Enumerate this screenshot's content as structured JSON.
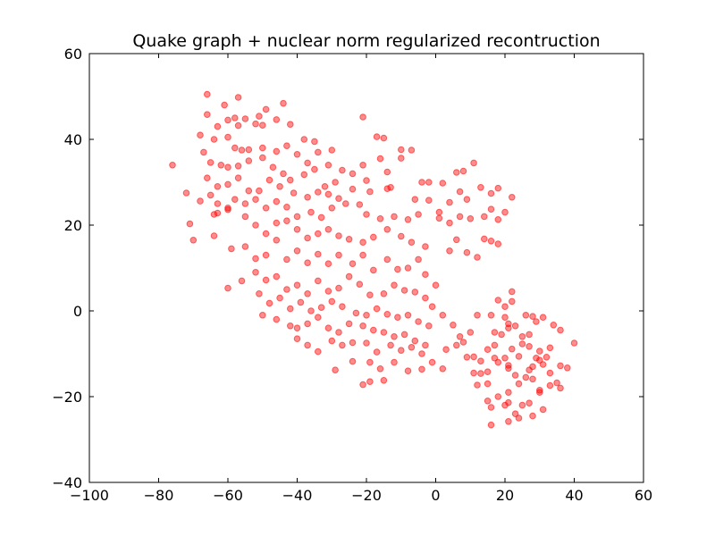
{
  "chart_data": {
    "type": "scatter",
    "title": "Quake graph + nuclear norm regularized recontruction",
    "xlabel": "",
    "ylabel": "",
    "xlim": [
      -100,
      60
    ],
    "ylim": [
      -40,
      60
    ],
    "xticks": [
      -100,
      -80,
      -60,
      -40,
      -20,
      0,
      20,
      40,
      60
    ],
    "yticks": [
      -40,
      -20,
      0,
      20,
      40,
      60
    ],
    "xtick_labels": [
      "−100",
      "−80",
      "−60",
      "−40",
      "−20",
      "0",
      "20",
      "40",
      "60"
    ],
    "ytick_labels": [
      "−40",
      "−20",
      "0",
      "20",
      "40",
      "60"
    ],
    "grid": false,
    "legend": "none",
    "marker_color": "#ff0000",
    "points": [
      [
        -66,
        50.5
      ],
      [
        -61,
        48
      ],
      [
        -57,
        49.8
      ],
      [
        -49,
        47
      ],
      [
        -44,
        48.4
      ],
      [
        -46,
        44.6
      ],
      [
        -51,
        45.4
      ],
      [
        -55,
        44.8
      ],
      [
        -58,
        45
      ],
      [
        -60,
        44.5
      ],
      [
        -66,
        45.8
      ],
      [
        -63,
        43
      ],
      [
        -57,
        43.2
      ],
      [
        -52,
        43.6
      ],
      [
        -50,
        43.3
      ],
      [
        -42,
        43.5
      ],
      [
        -38,
        40
      ],
      [
        -35,
        39.5
      ],
      [
        -30,
        37.5
      ],
      [
        -21,
        45.2
      ],
      [
        -17,
        40.6
      ],
      [
        -15,
        40.3
      ],
      [
        -10,
        37.6
      ],
      [
        -7,
        37.5
      ],
      [
        -16,
        35.5
      ],
      [
        -68,
        41
      ],
      [
        -64,
        40
      ],
      [
        -60,
        40.5
      ],
      [
        -58,
        38
      ],
      [
        -56,
        37.5
      ],
      [
        -54,
        37.6
      ],
      [
        -50,
        38
      ],
      [
        -46,
        37.2
      ],
      [
        -43,
        38.5
      ],
      [
        -40,
        36.5
      ],
      [
        -37,
        34.5
      ],
      [
        -34,
        37
      ],
      [
        -31,
        34
      ],
      [
        -27,
        32.8
      ],
      [
        -21,
        34
      ],
      [
        -14,
        32.4
      ],
      [
        -10,
        35.6
      ],
      [
        -67,
        37
      ],
      [
        -65,
        34.6
      ],
      [
        -62,
        34
      ],
      [
        -60,
        33.5
      ],
      [
        -57,
        33.8
      ],
      [
        -54,
        35
      ],
      [
        -50,
        35.7
      ],
      [
        -47,
        33.5
      ],
      [
        -44,
        32
      ],
      [
        -42,
        30.5
      ],
      [
        -38,
        31.8
      ],
      [
        -35,
        33
      ],
      [
        -32,
        29
      ],
      [
        -29,
        30
      ],
      [
        -24,
        32
      ],
      [
        -20,
        30.4
      ],
      [
        -76,
        34
      ],
      [
        -66,
        31
      ],
      [
        -63,
        29
      ],
      [
        -60,
        29.5
      ],
      [
        -57,
        31
      ],
      [
        -54,
        28
      ],
      [
        -51,
        28
      ],
      [
        -48,
        30.5
      ],
      [
        -45,
        29
      ],
      [
        -41,
        27.5
      ],
      [
        -37,
        26.5
      ],
      [
        -34,
        27.7
      ],
      [
        -31,
        27.2
      ],
      [
        -28,
        26.2
      ],
      [
        -24,
        28.4
      ],
      [
        -19,
        27.8
      ],
      [
        -14,
        28.5
      ],
      [
        -13,
        28.8
      ],
      [
        -6,
        26
      ],
      [
        -4,
        30
      ],
      [
        -2,
        30
      ],
      [
        2,
        29.8
      ],
      [
        6,
        32.3
      ],
      [
        8,
        32.6
      ],
      [
        11,
        34.5
      ],
      [
        -72,
        27.5
      ],
      [
        -68,
        25.6
      ],
      [
        -65,
        27
      ],
      [
        -63,
        25
      ],
      [
        -60,
        24
      ],
      [
        -58,
        26
      ],
      [
        -55,
        25
      ],
      [
        -52,
        26
      ],
      [
        -49,
        24
      ],
      [
        -46,
        25.5
      ],
      [
        -43,
        24.2
      ],
      [
        -40,
        22
      ],
      [
        -36,
        23
      ],
      [
        -33,
        21.8
      ],
      [
        -30,
        24
      ],
      [
        -26,
        25
      ],
      [
        -22,
        24.8
      ],
      [
        -20,
        22.5
      ],
      [
        -16,
        21.5
      ],
      [
        -12,
        22
      ],
      [
        -8,
        21.3
      ],
      [
        -5,
        22.5
      ],
      [
        -2,
        25.8
      ],
      [
        1,
        23
      ],
      [
        4,
        25.3
      ],
      [
        7,
        27.8
      ],
      [
        9,
        26
      ],
      [
        13,
        28.8
      ],
      [
        16,
        27.4
      ],
      [
        18,
        28.6
      ],
      [
        22,
        26.5
      ],
      [
        -71,
        20.3
      ],
      [
        -70,
        16.5
      ],
      [
        -64,
        22.5
      ],
      [
        -63,
        22.8
      ],
      [
        -60,
        23.6
      ],
      [
        -55,
        22
      ],
      [
        -52,
        20
      ],
      [
        -49,
        18
      ],
      [
        -46,
        20.5
      ],
      [
        -43,
        21
      ],
      [
        -40,
        19
      ],
      [
        -37,
        17
      ],
      [
        -34,
        18
      ],
      [
        -31,
        19
      ],
      [
        -28,
        17.5
      ],
      [
        -25,
        16.7
      ],
      [
        -21,
        16
      ],
      [
        -18,
        17.2
      ],
      [
        -14,
        19
      ],
      [
        -10,
        17.4
      ],
      [
        -7,
        16
      ],
      [
        -3,
        15
      ],
      [
        1,
        21.6
      ],
      [
        4,
        20.5
      ],
      [
        7,
        22
      ],
      [
        10,
        21.5
      ],
      [
        14,
        22
      ],
      [
        16,
        23.7
      ],
      [
        18,
        21.3
      ],
      [
        20,
        23
      ],
      [
        -64,
        17.5
      ],
      [
        -59,
        14.5
      ],
      [
        -55,
        15
      ],
      [
        -52,
        12.2
      ],
      [
        -49,
        13
      ],
      [
        -46,
        16.5
      ],
      [
        -43,
        12
      ],
      [
        -40,
        14
      ],
      [
        -37,
        11.2
      ],
      [
        -34,
        13.2
      ],
      [
        -31,
        11
      ],
      [
        -28,
        13
      ],
      [
        -24,
        11
      ],
      [
        -21,
        13
      ],
      [
        -18,
        9.5
      ],
      [
        -14,
        12
      ],
      [
        -11,
        9.7
      ],
      [
        -8,
        10
      ],
      [
        -5,
        12
      ],
      [
        -3,
        8.5
      ],
      [
        0,
        6
      ],
      [
        4,
        14
      ],
      [
        6,
        16.6
      ],
      [
        9,
        13.6
      ],
      [
        12,
        12.5
      ],
      [
        14,
        16.8
      ],
      [
        16,
        16.3
      ],
      [
        18,
        15.6
      ],
      [
        -60,
        5.3
      ],
      [
        -56,
        7
      ],
      [
        -52,
        9
      ],
      [
        -49,
        7.2
      ],
      [
        -46,
        8
      ],
      [
        -43,
        5
      ],
      [
        -40,
        6
      ],
      [
        -37,
        4
      ],
      [
        -34,
        7
      ],
      [
        -31,
        4.6
      ],
      [
        -28,
        5.3
      ],
      [
        -25,
        8
      ],
      [
        -22,
        6.2
      ],
      [
        -19,
        3.7
      ],
      [
        -15,
        4
      ],
      [
        -12,
        6
      ],
      [
        -9,
        4.8
      ],
      [
        -6,
        4.4
      ],
      [
        -3,
        3
      ],
      [
        -1,
        1
      ],
      [
        2,
        -1
      ],
      [
        -51,
        4
      ],
      [
        -48,
        1.8
      ],
      [
        -45,
        3
      ],
      [
        -42,
        0.5
      ],
      [
        -39,
        2
      ],
      [
        -36,
        0
      ],
      [
        -33,
        0.8
      ],
      [
        -30,
        2.2
      ],
      [
        -27,
        1
      ],
      [
        -23,
        -0.5
      ],
      [
        -20,
        -1
      ],
      [
        -17,
        0.5
      ],
      [
        -14,
        -0.8
      ],
      [
        -11,
        -1.5
      ],
      [
        -8,
        -1
      ],
      [
        -5,
        -2.5
      ],
      [
        -2,
        -3.5
      ],
      [
        -50,
        -1
      ],
      [
        -46,
        -2
      ],
      [
        -42,
        -3.5
      ],
      [
        -40,
        -4
      ],
      [
        -37,
        -3
      ],
      [
        -34,
        -1.5
      ],
      [
        -31,
        -4
      ],
      [
        -28,
        -5
      ],
      [
        -25,
        -3
      ],
      [
        -21,
        -3.5
      ],
      [
        -18,
        -4.5
      ],
      [
        -15,
        -5
      ],
      [
        -12,
        -6
      ],
      [
        -9,
        -5.5
      ],
      [
        -6,
        -7
      ],
      [
        -3,
        -8
      ],
      [
        -40,
        -6.5
      ],
      [
        -37,
        -8
      ],
      [
        -34,
        -9.5
      ],
      [
        -30,
        -7
      ],
      [
        -27,
        -8
      ],
      [
        -24,
        -7.4
      ],
      [
        -20,
        -7.5
      ],
      [
        -17,
        -9.6
      ],
      [
        -13,
        -8
      ],
      [
        -10,
        -9.2
      ],
      [
        -7,
        -8.5
      ],
      [
        -4,
        -10
      ],
      [
        -1,
        -12
      ],
      [
        2,
        -13.5
      ],
      [
        -29,
        -13.8
      ],
      [
        -24,
        -11.8
      ],
      [
        -19,
        -12
      ],
      [
        -16,
        -13.5
      ],
      [
        -12,
        -12
      ],
      [
        -8,
        -14
      ],
      [
        -4,
        -13.6
      ],
      [
        -15,
        -16.2
      ],
      [
        -19,
        -16.5
      ],
      [
        -21,
        -17.2
      ],
      [
        5,
        -3.3
      ],
      [
        7,
        -6
      ],
      [
        10,
        -5
      ],
      [
        12,
        -1
      ],
      [
        16,
        -1
      ],
      [
        17,
        -5
      ],
      [
        3,
        -9
      ],
      [
        6,
        -8
      ],
      [
        8,
        -7.3
      ],
      [
        9,
        -10.8
      ],
      [
        11,
        -10.7
      ],
      [
        13,
        -11.7
      ],
      [
        15,
        -9
      ],
      [
        17,
        -8
      ],
      [
        19,
        -5.5
      ],
      [
        21,
        -3
      ],
      [
        23,
        -3.5
      ],
      [
        25,
        -6
      ],
      [
        27,
        -5.5
      ],
      [
        29,
        -2.5
      ],
      [
        31,
        -1.5
      ],
      [
        34,
        -3.3
      ],
      [
        36,
        -4.5
      ],
      [
        33,
        -8.6
      ],
      [
        30,
        -9.4
      ],
      [
        27,
        -8.3
      ],
      [
        25,
        -7.7
      ],
      [
        22,
        -8.9
      ],
      [
        20,
        -11
      ],
      [
        18,
        -12
      ],
      [
        15,
        -14.2
      ],
      [
        13,
        -14.6
      ],
      [
        11,
        -14.5
      ],
      [
        21,
        -13.4
      ],
      [
        23,
        -15
      ],
      [
        26,
        -15.5
      ],
      [
        28,
        -13
      ],
      [
        30,
        -11.5
      ],
      [
        32,
        -10.8
      ],
      [
        33,
        -14.5
      ],
      [
        36,
        -12.8
      ],
      [
        38,
        -13.3
      ],
      [
        40,
        -7.5
      ],
      [
        31,
        -12.5
      ],
      [
        29,
        -11
      ],
      [
        27,
        -13.8
      ],
      [
        24,
        -17
      ],
      [
        21,
        -19
      ],
      [
        18,
        -20
      ],
      [
        15,
        -21
      ],
      [
        16,
        -22.5
      ],
      [
        20,
        -22
      ],
      [
        23,
        -24
      ],
      [
        25,
        -22
      ],
      [
        27,
        -21.5
      ],
      [
        30,
        -19
      ],
      [
        33,
        -17.4
      ],
      [
        35,
        -16.8
      ],
      [
        36,
        -18
      ],
      [
        31,
        -23
      ],
      [
        28,
        -24.5
      ],
      [
        24,
        -25
      ],
      [
        21,
        -25.8
      ],
      [
        16,
        -26.6
      ],
      [
        22,
        4.5
      ],
      [
        22,
        2.2
      ],
      [
        20,
        1
      ],
      [
        18,
        2.5
      ],
      [
        20,
        -1.5
      ],
      [
        21,
        -4
      ],
      [
        26,
        -1
      ],
      [
        28,
        -1.3
      ],
      [
        17,
        -11
      ],
      [
        21,
        -21.4
      ],
      [
        28,
        -15.9
      ],
      [
        30,
        -18.5
      ],
      [
        15,
        -17
      ],
      [
        12,
        -17.3
      ],
      [
        21,
        -12.7
      ],
      [
        24,
        -10.6
      ]
    ]
  }
}
